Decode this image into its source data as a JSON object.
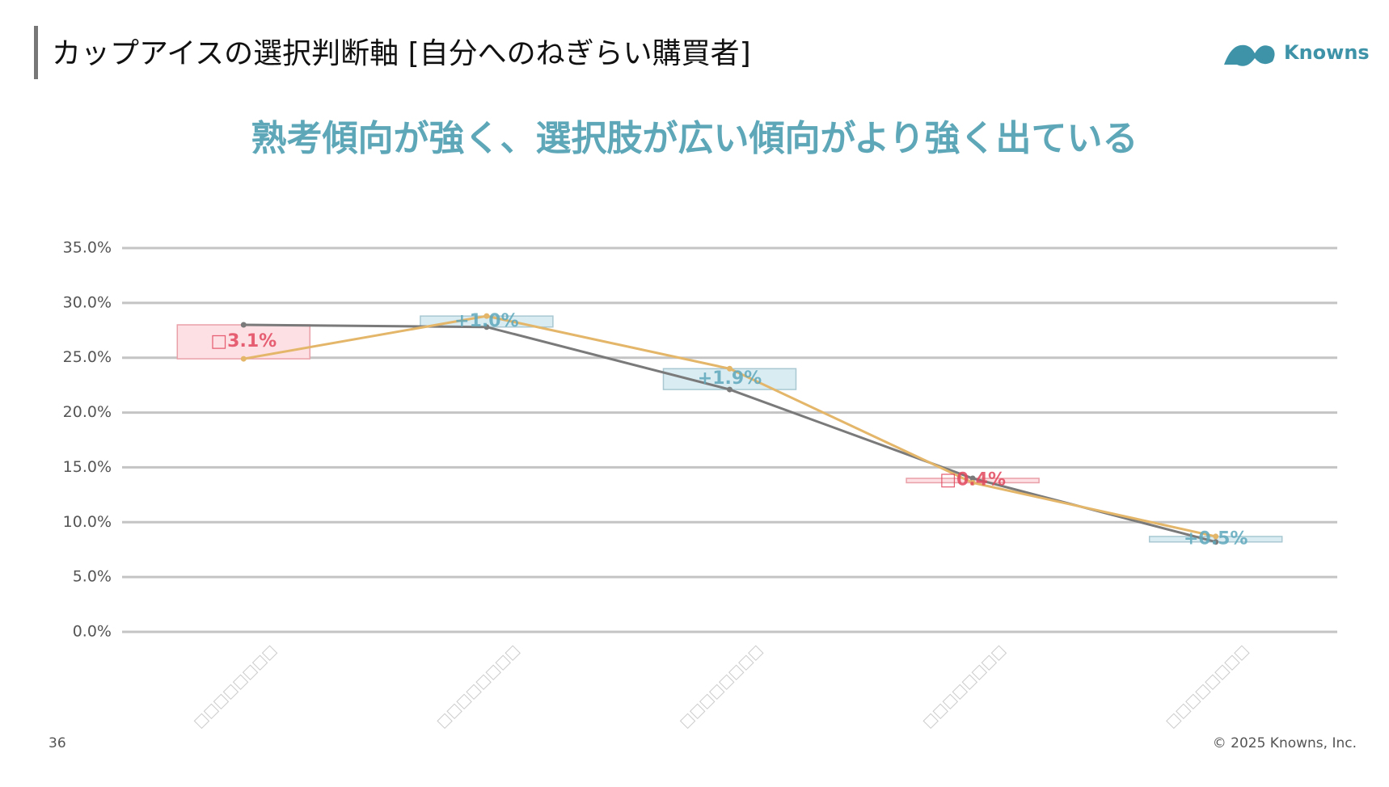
{
  "header": {
    "title": "カップアイスの選択判断軸 [自分へのねぎらい購買者]",
    "logo": "Knowns"
  },
  "headline": "熟考傾向が強く、選択肢が広い傾向がより強く出ている",
  "chart_data": {
    "type": "line",
    "categories": [
      "□□□□□□□□",
      "□□□□□□□□",
      "□□□□□□□□",
      "□□□□□□□□",
      "□□□□□□□□"
    ],
    "series": [
      {
        "color": "#7a7a7a",
        "values": [
          28.0,
          27.8,
          22.1,
          14.0,
          8.2
        ]
      },
      {
        "color": "#e3b66a",
        "values": [
          24.9,
          28.8,
          24.0,
          13.6,
          8.7
        ]
      }
    ],
    "differences": {
      "values": [
        -3.1,
        1.0,
        1.9,
        -0.4,
        0.5
      ],
      "value_labels": [
        "□3.1%",
        "+1.0%",
        "+1.9%",
        "□0.4%",
        "+0.5%"
      ],
      "negative_color": "#e2485e",
      "positive_color": "#5fa9bd"
    },
    "ylim": [
      0,
      35
    ],
    "yticks": [
      {
        "value": 0,
        "label": "0.0%"
      },
      {
        "value": 5,
        "label": "5.0%"
      },
      {
        "value": 10,
        "label": "10.0%"
      },
      {
        "value": 15,
        "label": "15.0%"
      },
      {
        "value": 20,
        "label": "20.0%"
      },
      {
        "value": 25,
        "label": "25.0%"
      },
      {
        "value": 30,
        "label": "30.0%"
      },
      {
        "value": 35,
        "label": "35.0%"
      }
    ],
    "grid": true
  },
  "footer": {
    "page": "36",
    "copyright": "© 2025 Knowns, Inc."
  }
}
